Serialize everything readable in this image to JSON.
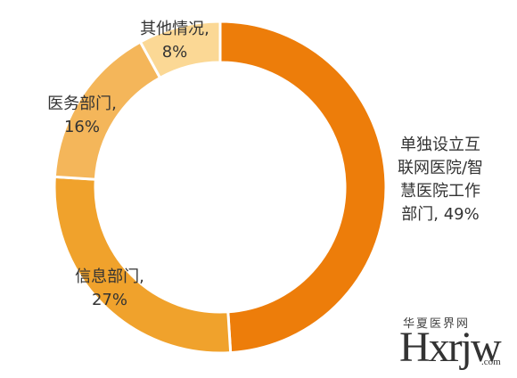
{
  "chart_data": {
    "type": "donut",
    "values": [
      49,
      27,
      16,
      8
    ],
    "value_labels": [
      "单独设立互联网医院/智慧医院工作部门, 49%",
      "信息部门, 27%",
      "医务部门, 16%",
      "其他情况, 8%"
    ],
    "colors": [
      "#ed7d0a",
      "#f0a22c",
      "#f4b65a",
      "#fbd895"
    ]
  },
  "watermark": {
    "logo": "Hxrjw",
    "site": "华夏医界网",
    "domain": ".com"
  }
}
